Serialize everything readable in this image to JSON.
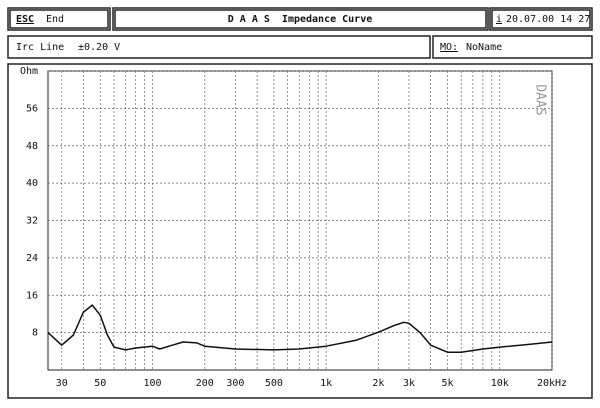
{
  "header": {
    "key": "ESC",
    "key_label": "End",
    "title": "D A A S  Impedance Curve",
    "info_icon": "i",
    "datetime": "20.07.00 14 27"
  },
  "status": {
    "mode": "Irc Line",
    "level": "±0.20 V",
    "name_key": "MO:",
    "name": "NoName"
  },
  "chart_data": {
    "type": "line",
    "watermark": "DAAS",
    "color": "#111111",
    "x_log": true,
    "grid": true,
    "x": [
      25,
      30,
      35,
      40,
      45,
      50,
      55,
      60,
      70,
      80,
      100,
      110,
      130,
      150,
      180,
      200,
      300,
      500,
      700,
      1000,
      1500,
      2000,
      2500,
      2800,
      3000,
      3500,
      4000,
      5000,
      6000,
      8000,
      10000,
      15000,
      20000
    ],
    "values": [
      8,
      5.3,
      7.5,
      12.4,
      13.9,
      11.7,
      7.5,
      4.9,
      4.3,
      4.7,
      5.1,
      4.5,
      5.3,
      6,
      5.8,
      5.1,
      4.5,
      4.3,
      4.5,
      5.1,
      6.4,
      8.1,
      9.6,
      10.2,
      10,
      7.9,
      5.3,
      3.8,
      3.8,
      4.5,
      4.9,
      5.5,
      6
    ],
    "xlim": [
      25,
      20000
    ],
    "xticks": [
      30,
      50,
      100,
      200,
      300,
      500,
      {
        "value": 1000,
        "label": "1k"
      },
      {
        "value": 2000,
        "label": "2k"
      },
      {
        "value": 3000,
        "label": "3k"
      },
      {
        "value": 5000,
        "label": "5k"
      },
      {
        "value": 10000,
        "label": "10k"
      },
      {
        "value": 20000,
        "label": "20kHz"
      }
    ],
    "x_minor_ticks": [
      40,
      60,
      70,
      80,
      90,
      400,
      600,
      700,
      800,
      900,
      4000,
      6000,
      7000,
      8000,
      9000
    ],
    "ylim": [
      0,
      64
    ],
    "yticks": [
      8,
      16,
      24,
      32,
      40,
      48,
      56,
      {
        "value": 64,
        "label": "Ohm"
      }
    ]
  }
}
